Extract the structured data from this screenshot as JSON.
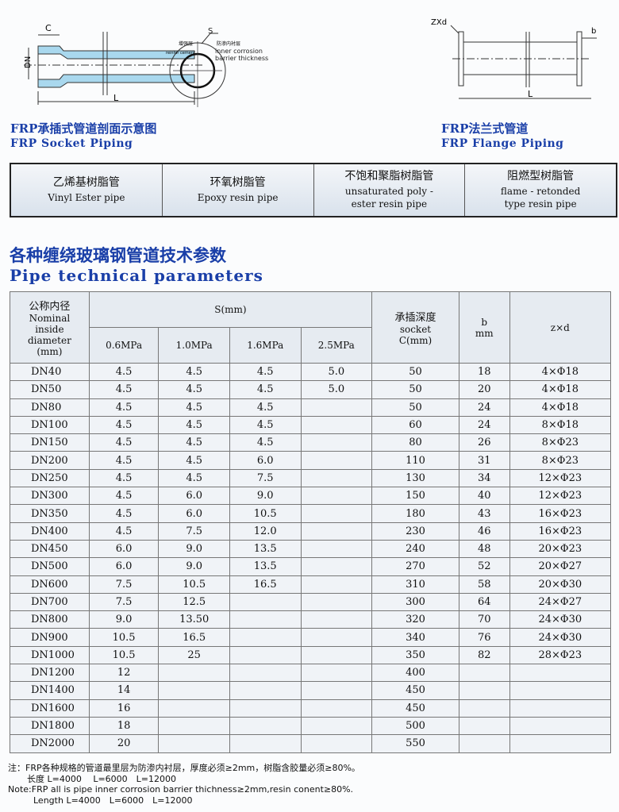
{
  "diagrams": {
    "socket": {
      "labels": {
        "c": "C",
        "s": "S",
        "dn": "DN",
        "l": "L"
      },
      "caption_cn": "FRP承插式管道剖面示意图",
      "caption_en": "FRP Socket Piping"
    },
    "section": {
      "left_cn": "增强层",
      "left_en": "reinfor cement",
      "right_cn": "防渗内衬层",
      "right_en": "inner corrosion barrier thickness"
    },
    "flange": {
      "labels": {
        "zxd": "ZXd",
        "b": "b",
        "l": "L"
      },
      "caption_cn": "FRP法兰式管道",
      "caption_en": "FRP Flange Piping"
    }
  },
  "types": [
    {
      "cn": "乙烯基树脂管",
      "en": "Vinyl Ester pipe"
    },
    {
      "cn": "环氧树脂管",
      "en": "Epoxy resin pipe"
    },
    {
      "cn": "不饱和聚脂树脂管",
      "en": "unsaturated poly - ester resin pipe"
    },
    {
      "cn": "阻燃型树脂管",
      "en": "flame - retonded type resin pipe"
    }
  ],
  "section_title": {
    "cn": "各种缠绕玻璃钢管道技术参数",
    "en": "Pipe technical parameters"
  },
  "table": {
    "headers": {
      "diameter_cn": "公称内径",
      "diameter_en": "Nominal inside diameter (mm)",
      "s": "S(mm)",
      "pressures": [
        "0.6MPa",
        "1.0MPa",
        "1.6MPa",
        "2.5MPa"
      ],
      "socket_cn": "承插深度",
      "socket_en": "socket C(mm)",
      "b": "b mm",
      "zxd": "z×d"
    },
    "rows": [
      [
        "DN40",
        "4.5",
        "4.5",
        "4.5",
        "5.0",
        "50",
        "18",
        "4×Φ18"
      ],
      [
        "DN50",
        "4.5",
        "4.5",
        "4.5",
        "5.0",
        "50",
        "20",
        "4×Φ18"
      ],
      [
        "DN80",
        "4.5",
        "4.5",
        "4.5",
        "",
        "50",
        "24",
        "4×Φ18"
      ],
      [
        "DN100",
        "4.5",
        "4.5",
        "4.5",
        "",
        "60",
        "24",
        "8×Φ18"
      ],
      [
        "DN150",
        "4.5",
        "4.5",
        "4.5",
        "",
        "80",
        "26",
        "8×Φ23"
      ],
      [
        "DN200",
        "4.5",
        "4.5",
        "6.0",
        "",
        "110",
        "31",
        "8×Φ23"
      ],
      [
        "DN250",
        "4.5",
        "4.5",
        "7.5",
        "",
        "130",
        "34",
        "12×Φ23"
      ],
      [
        "DN300",
        "4.5",
        "6.0",
        "9.0",
        "",
        "150",
        "40",
        "12×Φ23"
      ],
      [
        "DN350",
        "4.5",
        "6.0",
        "10.5",
        "",
        "180",
        "43",
        "16×Φ23"
      ],
      [
        "DN400",
        "4.5",
        "7.5",
        "12.0",
        "",
        "230",
        "46",
        "16×Φ23"
      ],
      [
        "DN450",
        "6.0",
        "9.0",
        "13.5",
        "",
        "240",
        "48",
        "20×Φ23"
      ],
      [
        "DN500",
        "6.0",
        "9.0",
        "13.5",
        "",
        "270",
        "52",
        "20×Φ27"
      ],
      [
        "DN600",
        "7.5",
        "10.5",
        "16.5",
        "",
        "310",
        "58",
        "20×Φ30"
      ],
      [
        "DN700",
        "7.5",
        "12.5",
        "",
        "",
        "300",
        "64",
        "24×Φ27"
      ],
      [
        "DN800",
        "9.0",
        "13.50",
        "",
        "",
        "320",
        "70",
        "24×Φ30"
      ],
      [
        "DN900",
        "10.5",
        "16.5",
        "",
        "",
        "340",
        "76",
        "24×Φ30"
      ],
      [
        "DN1000",
        "10.5",
        "25",
        "",
        "",
        "350",
        "82",
        "28×Φ23"
      ],
      [
        "DN1200",
        "12",
        "",
        "",
        "",
        "400",
        "",
        ""
      ],
      [
        "DN1400",
        "14",
        "",
        "",
        "",
        "450",
        "",
        ""
      ],
      [
        "DN1600",
        "16",
        "",
        "",
        "",
        "450",
        "",
        ""
      ],
      [
        "DN1800",
        "18",
        "",
        "",
        "",
        "500",
        "",
        ""
      ],
      [
        "DN2000",
        "20",
        "",
        "",
        "",
        "550",
        "",
        ""
      ]
    ]
  },
  "notes": {
    "cn": "注：FRP各种规格的管道最里层为防渗内衬层，厚度必须≥2mm，树脂含胶量必须≥80%。",
    "cn_length": "长度 L=4000　 L=6000　L=12000",
    "en": "Note:FRP all is pipe inner corrosion barrier thichness≥2mm,resin conent≥80%.",
    "en_length": "Length  L=4000　L=6000　L=12000"
  }
}
